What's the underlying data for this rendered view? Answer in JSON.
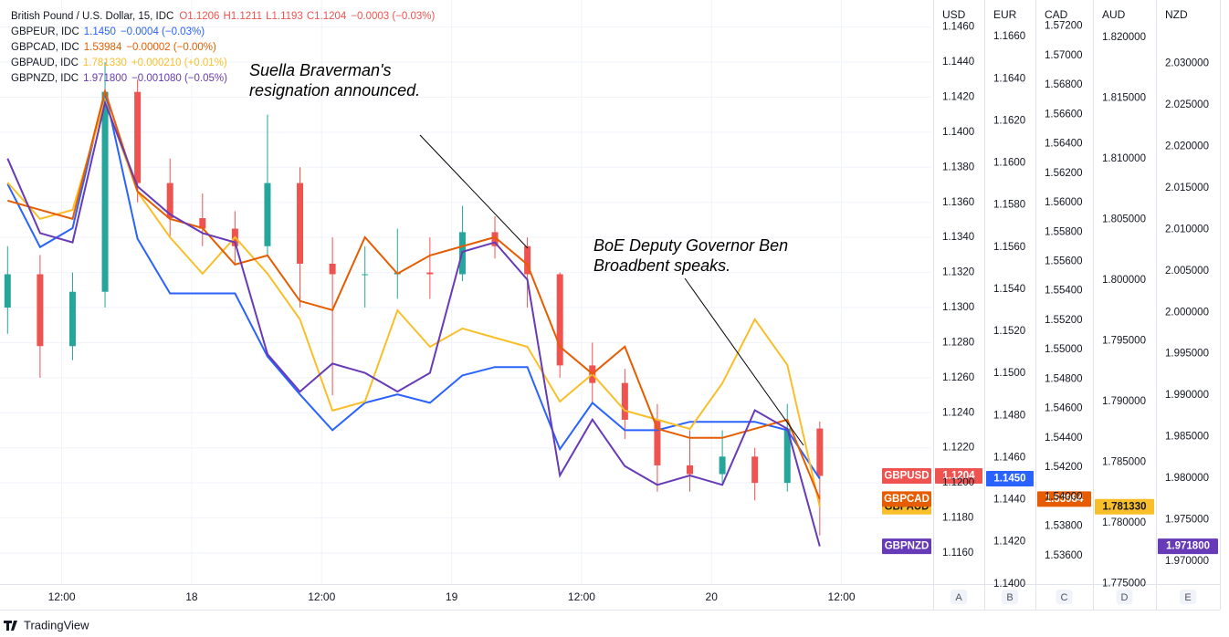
{
  "chart_data": {
    "type": "multi-axis-price",
    "x": [
      7,
      10,
      13,
      16,
      19,
      22,
      25,
      28,
      31,
      34,
      37,
      40,
      43,
      46,
      49,
      52,
      55,
      58,
      61,
      64,
      67,
      70,
      73,
      76,
      79,
      82
    ],
    "xlim": [
      6.3,
      92.3
    ],
    "xticks": [
      {
        "value": 12,
        "label": "12:00"
      },
      {
        "value": 24,
        "label": "18"
      },
      {
        "value": 36,
        "label": "12:00"
      },
      {
        "value": 48,
        "label": "19"
      },
      {
        "value": 60,
        "label": "12:00"
      },
      {
        "value": 72,
        "label": "20"
      },
      {
        "value": 84,
        "label": "12:00"
      }
    ],
    "grid": true,
    "y_axes": [
      {
        "label": "USD",
        "letter": "A",
        "ylim": [
          1.11423,
          1.14754
        ],
        "yticks": [
          {
            "value": 1.116,
            "label": "1.1160"
          },
          {
            "value": 1.118,
            "label": "1.1180"
          },
          {
            "value": 1.12,
            "label": "1.1200"
          },
          {
            "value": 1.122,
            "label": "1.1220"
          },
          {
            "value": 1.124,
            "label": "1.1240"
          },
          {
            "value": 1.126,
            "label": "1.1260"
          },
          {
            "value": 1.128,
            "label": "1.1280"
          },
          {
            "value": 1.13,
            "label": "1.1300"
          },
          {
            "value": 1.132,
            "label": "1.1320"
          },
          {
            "value": 1.134,
            "label": "1.1340"
          },
          {
            "value": 1.136,
            "label": "1.1360"
          },
          {
            "value": 1.138,
            "label": "1.1380"
          },
          {
            "value": 1.14,
            "label": "1.1400"
          },
          {
            "value": 1.142,
            "label": "1.1420"
          },
          {
            "value": 1.144,
            "label": "1.1440"
          },
          {
            "value": 1.146,
            "label": "1.1460"
          }
        ]
      },
      {
        "label": "EUR",
        "letter": "B",
        "ylim": [
          1.13999,
          1.16774
        ],
        "yticks": [
          {
            "value": 1.14,
            "label": "1.1400"
          },
          {
            "value": 1.142,
            "label": "1.1420"
          },
          {
            "value": 1.144,
            "label": "1.1440"
          },
          {
            "value": 1.146,
            "label": "1.1460"
          },
          {
            "value": 1.148,
            "label": "1.1480"
          },
          {
            "value": 1.15,
            "label": "1.1500"
          },
          {
            "value": 1.152,
            "label": "1.1520"
          },
          {
            "value": 1.154,
            "label": "1.1540"
          },
          {
            "value": 1.156,
            "label": "1.1560"
          },
          {
            "value": 1.158,
            "label": "1.1580"
          },
          {
            "value": 1.16,
            "label": "1.1600"
          },
          {
            "value": 1.162,
            "label": "1.1620"
          },
          {
            "value": 1.164,
            "label": "1.1640"
          },
          {
            "value": 1.166,
            "label": "1.1660"
          }
        ]
      },
      {
        "label": "CAD",
        "letter": "C",
        "ylim": [
          1.53406,
          1.57378
        ],
        "yticks": [
          {
            "value": 1.536,
            "label": "1.53600"
          },
          {
            "value": 1.538,
            "label": "1.53800"
          },
          {
            "value": 1.54,
            "label": "1.54000"
          },
          {
            "value": 1.542,
            "label": "1.54200"
          },
          {
            "value": 1.544,
            "label": "1.54400"
          },
          {
            "value": 1.546,
            "label": "1.54600"
          },
          {
            "value": 1.548,
            "label": "1.54800"
          },
          {
            "value": 1.55,
            "label": "1.55000"
          },
          {
            "value": 1.552,
            "label": "1.55200"
          },
          {
            "value": 1.554,
            "label": "1.55400"
          },
          {
            "value": 1.556,
            "label": "1.55600"
          },
          {
            "value": 1.558,
            "label": "1.55800"
          },
          {
            "value": 1.56,
            "label": "1.56000"
          },
          {
            "value": 1.562,
            "label": "1.56200"
          },
          {
            "value": 1.564,
            "label": "1.56400"
          },
          {
            "value": 1.566,
            "label": "1.56600"
          },
          {
            "value": 1.568,
            "label": "1.56800"
          },
          {
            "value": 1.57,
            "label": "1.57000"
          },
          {
            "value": 1.572,
            "label": "1.57200"
          }
        ]
      },
      {
        "label": "AUD",
        "letter": "D",
        "ylim": [
          1.77496,
          1.82308
        ],
        "yticks": [
          {
            "value": 1.775,
            "label": "1.775000"
          },
          {
            "value": 1.78,
            "label": "1.780000"
          },
          {
            "value": 1.785,
            "label": "1.785000"
          },
          {
            "value": 1.79,
            "label": "1.790000"
          },
          {
            "value": 1.795,
            "label": "1.795000"
          },
          {
            "value": 1.8,
            "label": "1.800000"
          },
          {
            "value": 1.805,
            "label": "1.805000"
          },
          {
            "value": 1.81,
            "label": "1.810000"
          },
          {
            "value": 1.815,
            "label": "1.815000"
          },
          {
            "value": 1.82,
            "label": "1.820000"
          }
        ]
      },
      {
        "label": "NZD",
        "letter": "E",
        "ylim": [
          1.96725,
          2.03764
        ],
        "yticks": [
          {
            "value": 1.97,
            "label": "1.970000"
          },
          {
            "value": 1.975,
            "label": "1.975000"
          },
          {
            "value": 1.98,
            "label": "1.980000"
          },
          {
            "value": 1.985,
            "label": "1.985000"
          },
          {
            "value": 1.99,
            "label": "1.990000"
          },
          {
            "value": 1.995,
            "label": "1.995000"
          },
          {
            "value": 2.0,
            "label": "2.000000"
          },
          {
            "value": 2.005,
            "label": "2.005000"
          },
          {
            "value": 2.01,
            "label": "2.010000"
          },
          {
            "value": 2.015,
            "label": "2.015000"
          },
          {
            "value": 2.02,
            "label": "2.020000"
          },
          {
            "value": 2.025,
            "label": "2.025000"
          },
          {
            "value": 2.03,
            "label": "2.030000"
          }
        ]
      }
    ],
    "main": {
      "name": "GBPUSD",
      "legend": "British Pound / U.S. Dollar, 15, IDC",
      "axis": 0,
      "color": "#ef5350",
      "color_up": "#26a69a",
      "color_down": "#ef5350",
      "ohlc_labels": [
        "O1.1206",
        "H1.1211",
        "L1.1193",
        "C1.1204"
      ],
      "change": "−0.0003 (−0.03%)",
      "last_label": "1.1204",
      "candles": [
        [
          1.13,
          1.1335,
          1.1285,
          1.1319
        ],
        [
          1.1319,
          1.133,
          1.126,
          1.1278
        ],
        [
          1.1278,
          1.132,
          1.127,
          1.1309
        ],
        [
          1.1309,
          1.144,
          1.13,
          1.1423
        ],
        [
          1.1423,
          1.143,
          1.136,
          1.1371
        ],
        [
          1.1371,
          1.1385,
          1.134,
          1.1351
        ],
        [
          1.1351,
          1.1365,
          1.1335,
          1.1345
        ],
        [
          1.1345,
          1.1355,
          1.1325,
          1.1335
        ],
        [
          1.1335,
          1.141,
          1.133,
          1.1371
        ],
        [
          1.1371,
          1.138,
          1.13,
          1.1325
        ],
        [
          1.1325,
          1.134,
          1.125,
          1.1319
        ],
        [
          1.1319,
          1.1335,
          1.13,
          1.1319
        ],
        [
          1.1319,
          1.1345,
          1.1305,
          1.132
        ],
        [
          1.132,
          1.134,
          1.1305,
          1.1319
        ],
        [
          1.1319,
          1.1358,
          1.1315,
          1.1343
        ],
        [
          1.1343,
          1.1352,
          1.1328,
          1.1335
        ],
        [
          1.1335,
          1.134,
          1.13,
          1.1319
        ],
        [
          1.1319,
          1.132,
          1.126,
          1.1267
        ],
        [
          1.1267,
          1.128,
          1.1245,
          1.1257
        ],
        [
          1.1257,
          1.1265,
          1.1225,
          1.1236
        ],
        [
          1.1236,
          1.1245,
          1.1195,
          1.121
        ],
        [
          1.121,
          1.123,
          1.1195,
          1.1205
        ],
        [
          1.1205,
          1.123,
          1.12,
          1.1215
        ],
        [
          1.1215,
          1.122,
          1.119,
          1.12
        ],
        [
          1.12,
          1.1245,
          1.1195,
          1.1231
        ],
        [
          1.1231,
          1.1235,
          1.117,
          1.1204
        ]
      ]
    },
    "series": [
      {
        "name": "GBPEUR",
        "legend": "GBPEUR, IDC",
        "color": "#2962ff",
        "axis": 1,
        "name_tag": false,
        "last_label": "1.1450",
        "change": "−0.0004 (−0.03%)",
        "values": [
          1.159,
          1.156,
          1.1569,
          1.1634,
          1.1564,
          1.1538,
          1.1538,
          1.1538,
          1.1508,
          1.149,
          1.1473,
          1.1486,
          1.149,
          1.1486,
          1.1499,
          1.1503,
          1.1503,
          1.1464,
          1.1486,
          1.1473,
          1.1473,
          1.1477,
          1.1477,
          1.1477,
          1.1473,
          1.145
        ]
      },
      {
        "name": "GBPAUD",
        "legend": "GBPAUD, IDC",
        "color": "#f9bf2a",
        "tag_text": "#131722",
        "axis": 3,
        "name_tag": true,
        "last_label": "1.781330",
        "change": "+0.000210 (+0.01%)",
        "values": [
          1.80805,
          1.80504,
          1.80579,
          1.81481,
          1.80729,
          1.80353,
          1.80053,
          1.80353,
          1.80053,
          1.79677,
          1.78925,
          1.79,
          1.79752,
          1.79451,
          1.79602,
          1.79526,
          1.79451,
          1.79,
          1.79226,
          1.78925,
          1.7885,
          1.78774,
          1.7915,
          1.79677,
          1.79301,
          1.78133
        ]
      },
      {
        "name": "GBPCAD",
        "legend": "GBPCAD, IDC",
        "color": "#e65c00",
        "axis": 2,
        "name_tag": true,
        "last_label": "1.53984",
        "change": "−0.00002 (−0.00%)",
        "values": [
          1.56014,
          1.55951,
          1.55889,
          1.56758,
          1.56076,
          1.55889,
          1.55827,
          1.55579,
          1.55641,
          1.55331,
          1.55269,
          1.55765,
          1.55517,
          1.55641,
          1.55703,
          1.55765,
          1.55579,
          1.55021,
          1.54835,
          1.55021,
          1.54462,
          1.544,
          1.544,
          1.54462,
          1.54524,
          1.53984
        ]
      },
      {
        "name": "GBPNZD",
        "legend": "GBPNZD, IDC",
        "color": "#673ab7",
        "axis": 4,
        "name_tag": true,
        "last_label": "1.971800",
        "change": "−0.001080 (−0.05%)",
        "values": [
          2.01854,
          2.00955,
          2.00843,
          2.02528,
          2.01517,
          2.0118,
          2.00955,
          2.00843,
          1.99494,
          1.99045,
          1.99382,
          1.9927,
          1.99045,
          1.9927,
          2.0073,
          2.00843,
          2.00393,
          1.98034,
          1.98708,
          1.98146,
          1.97921,
          1.98034,
          1.97921,
          1.9882,
          1.98596,
          1.9718
        ]
      }
    ],
    "legend_order": [
      "GBPEUR",
      "GBPCAD",
      "GBPAUD",
      "GBPNZD"
    ],
    "annotations": [
      {
        "lines": [
          "Suella Braverman's",
          "resignation announced."
        ]
      },
      {
        "lines": [
          "BoE Deputy Governor Ben",
          "Broadbent speaks."
        ]
      }
    ],
    "brand": "TradingView"
  }
}
